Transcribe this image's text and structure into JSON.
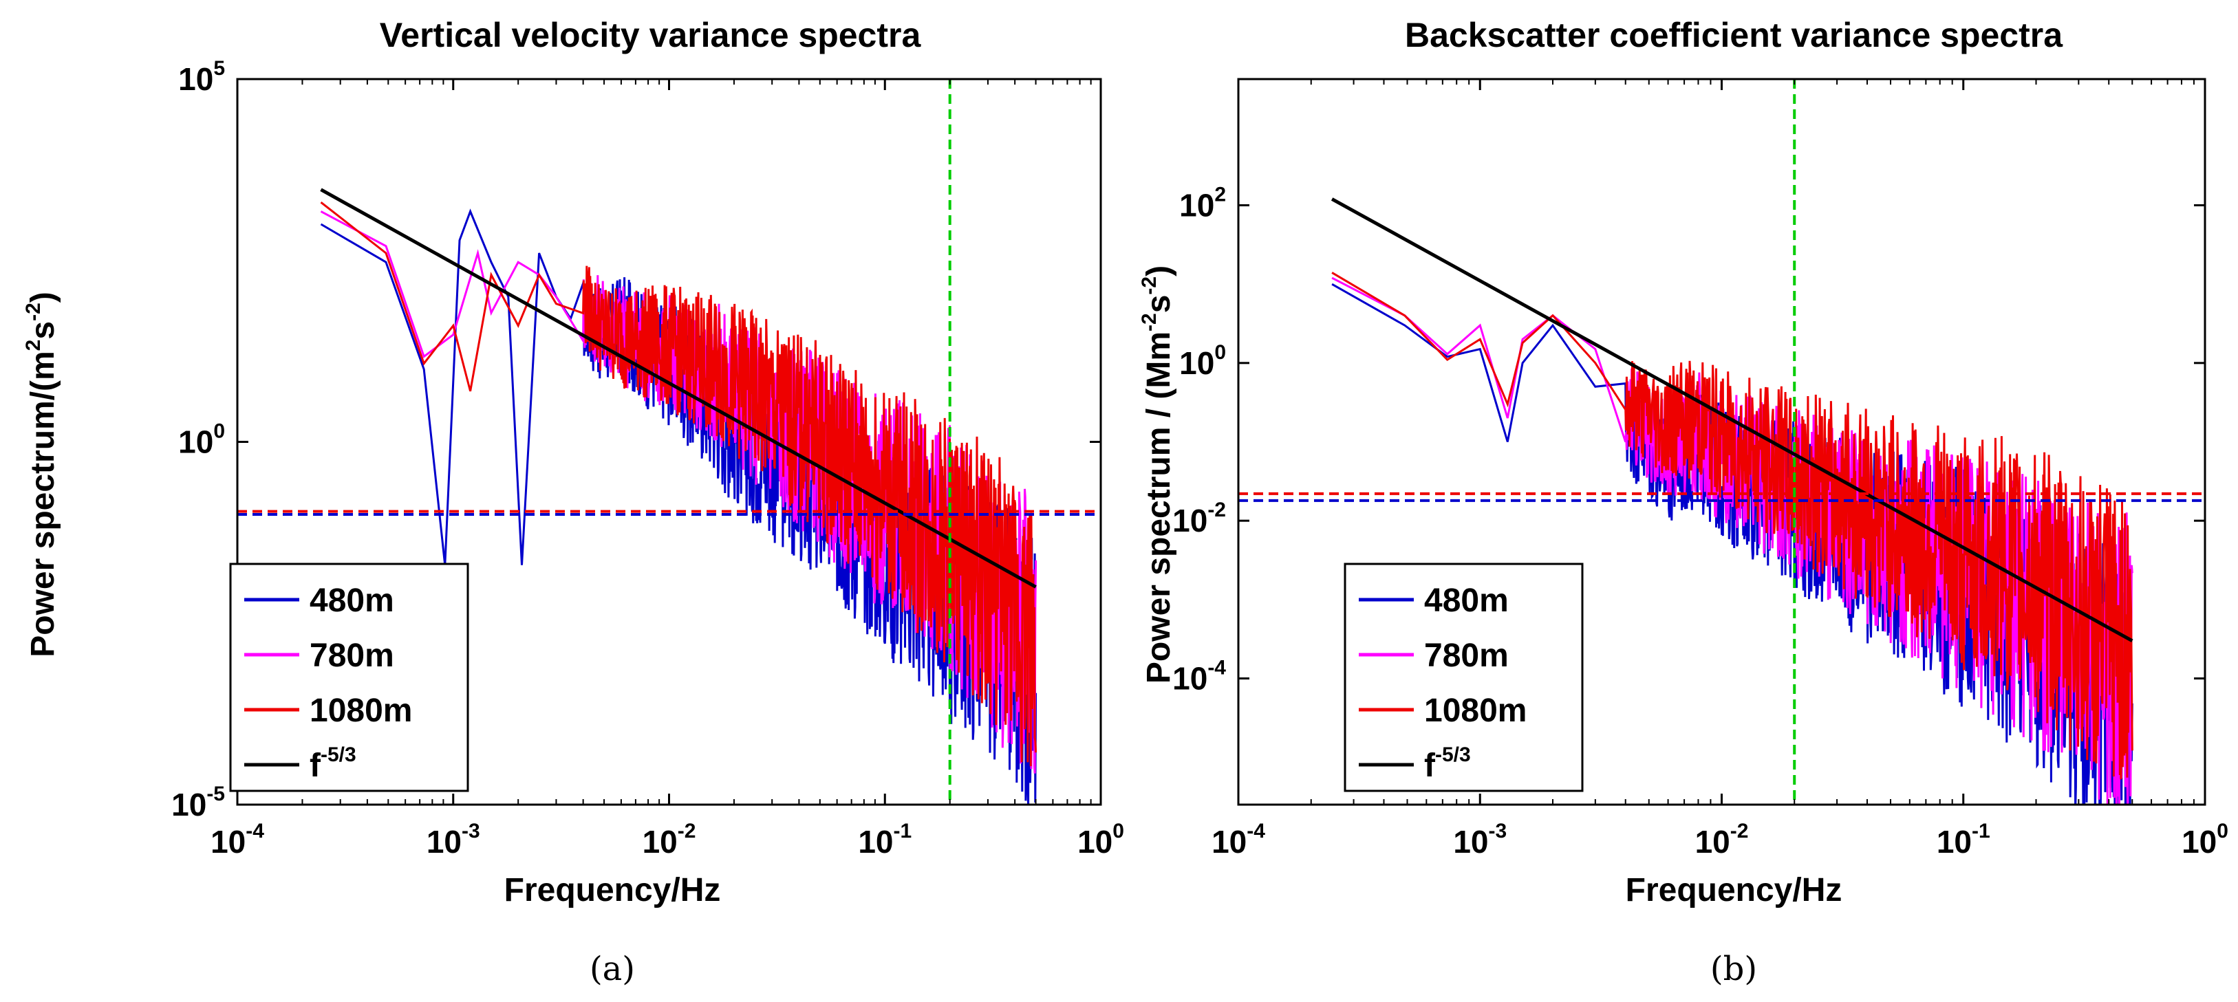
{
  "chart_data": [
    {
      "type": "line",
      "panel": "a",
      "caption": "(a)",
      "title": "Vertical velocity variance spectra",
      "xlabel": "Frequency/Hz",
      "ylabel": "Power spectrum/(m²s⁻²)",
      "ylabel_main": "Power spectrum/(m",
      "ylabel_sup1": "2",
      "ylabel_mid": "s",
      "ylabel_sup2": "-2",
      "ylabel_tail": ")",
      "xscale": "log",
      "yscale": "log",
      "xlim_exp": [
        -4,
        0
      ],
      "ylim_exp": [
        -5,
        5
      ],
      "x_ticks": [
        {
          "base": "10",
          "exp": "-4"
        },
        {
          "base": "10",
          "exp": "-3"
        },
        {
          "base": "10",
          "exp": "-2"
        },
        {
          "base": "10",
          "exp": "-1"
        },
        {
          "base": "10",
          "exp": "0"
        }
      ],
      "y_ticks": [
        {
          "base": "10",
          "exp": "-5"
        },
        {
          "base": "10",
          "exp": "0"
        },
        {
          "base": "10",
          "exp": "5"
        }
      ],
      "legend_position": "bottom-left",
      "series": [
        {
          "name": "480m",
          "color": "#0000cc",
          "x": [
            0.000244,
            0.000488,
            0.000732,
            0.000916,
            0.00107,
            0.0012,
            0.0015,
            0.0018,
            0.00208,
            0.0025,
            0.003,
            0.0035,
            0.004,
            0.005,
            0.006,
            0.008,
            0.01,
            0.015,
            0.02,
            0.03,
            0.05,
            0.08,
            0.1,
            0.15,
            0.2,
            0.3,
            0.5
          ],
          "y": [
            1000,
            300,
            10,
            0.02,
            600,
            1500,
            300,
            100,
            0.02,
            400,
            100,
            50,
            60,
            30,
            50,
            20,
            15,
            5,
            2,
            0.8,
            0.3,
            0.1,
            0.05,
            0.02,
            0.01,
            0.005,
            0.001
          ],
          "y_band_low": [
            null
          ],
          "note": "noisy spectrum; representative envelope values"
        },
        {
          "name": "780m",
          "color": "#ff00ff",
          "x": [
            0.000244,
            0.000488,
            0.000732,
            0.001,
            0.0013,
            0.0015,
            0.002,
            0.0025,
            0.003,
            0.004,
            0.005,
            0.007,
            0.01,
            0.02,
            0.03,
            0.05,
            0.1,
            0.2,
            0.3,
            0.5
          ],
          "y": [
            1500,
            500,
            15,
            30,
            400,
            60,
            300,
            200,
            100,
            80,
            50,
            30,
            20,
            8,
            3,
            1,
            0.2,
            0.05,
            0.01,
            0.003
          ]
        },
        {
          "name": "1080m",
          "color": "#ee0000",
          "x": [
            0.000244,
            0.000488,
            0.000732,
            0.001,
            0.0012,
            0.0015,
            0.002,
            0.0025,
            0.003,
            0.004,
            0.005,
            0.007,
            0.01,
            0.02,
            0.03,
            0.05,
            0.1,
            0.2,
            0.3,
            0.5
          ],
          "y": [
            2000,
            400,
            12,
            40,
            5,
            200,
            40,
            200,
            80,
            100,
            40,
            30,
            25,
            10,
            4,
            1.5,
            0.3,
            0.06,
            0.02,
            0.003
          ]
        },
        {
          "name": "f^-5/3",
          "legend_base": "f",
          "legend_sup": "-5/3",
          "color": "#000000",
          "x": [
            0.000244,
            0.5
          ],
          "y": [
            3000,
            0.01
          ]
        }
      ],
      "hlines": [
        {
          "y": 0.11,
          "color": "#ee0000",
          "style": "dashed"
        },
        {
          "y": 0.1,
          "color": "#0000cc",
          "style": "dashed"
        }
      ],
      "vlines": [
        {
          "x": 0.2,
          "color": "#00cc00",
          "style": "dashed"
        }
      ]
    },
    {
      "type": "line",
      "panel": "b",
      "caption": "(b)",
      "title": "Backscatter coefficient variance spectra",
      "xlabel": "Frequency/Hz",
      "ylabel": "Power spectrum / (Mm⁻²s⁻²)",
      "ylabel_main": "Power spectrum / (Mm",
      "ylabel_sup1": "-2",
      "ylabel_mid": "s",
      "ylabel_sup2": "-2",
      "ylabel_tail": ")",
      "xscale": "log",
      "yscale": "log",
      "xlim_exp": [
        -4,
        0
      ],
      "ylim_exp": [
        -5.6,
        3.6
      ],
      "x_ticks": [
        {
          "base": "10",
          "exp": "-4"
        },
        {
          "base": "10",
          "exp": "-3"
        },
        {
          "base": "10",
          "exp": "-2"
        },
        {
          "base": "10",
          "exp": "-1"
        },
        {
          "base": "10",
          "exp": "0"
        }
      ],
      "y_ticks": [
        {
          "base": "10",
          "exp": "-4"
        },
        {
          "base": "10",
          "exp": "-2"
        },
        {
          "base": "10",
          "exp": "0"
        },
        {
          "base": "10",
          "exp": "2"
        }
      ],
      "legend_position": "bottom-left",
      "series": [
        {
          "name": "480m",
          "color": "#0000cc",
          "x": [
            0.000244,
            0.000488,
            0.000732,
            0.001,
            0.0013,
            0.0015,
            0.002,
            0.003,
            0.004,
            0.006,
            0.008,
            0.01,
            0.02,
            0.03,
            0.05,
            0.1,
            0.2,
            0.3,
            0.5
          ],
          "y": [
            10,
            3,
            1.2,
            1.5,
            0.1,
            1,
            3,
            0.5,
            0.2,
            0.05,
            0.1,
            0.05,
            0.02,
            0.01,
            0.005,
            0.002,
            0.0005,
            0.0002,
            0.0001
          ]
        },
        {
          "name": "780m",
          "color": "#ff00ff",
          "x": [
            0.000244,
            0.000488,
            0.000732,
            0.001,
            0.0013,
            0.0015,
            0.002,
            0.003,
            0.004,
            0.006,
            0.008,
            0.01,
            0.02,
            0.03,
            0.05,
            0.1,
            0.2,
            0.3,
            0.5
          ],
          "y": [
            12,
            4,
            1.3,
            3,
            0.2,
            2,
            4,
            1.5,
            0.3,
            0.1,
            0.15,
            0.08,
            0.03,
            0.015,
            0.008,
            0.003,
            0.001,
            0.0004,
            0.0002
          ]
        },
        {
          "name": "1080m",
          "color": "#ee0000",
          "x": [
            0.000244,
            0.000488,
            0.000732,
            0.001,
            0.0013,
            0.0015,
            0.002,
            0.003,
            0.004,
            0.006,
            0.008,
            0.01,
            0.02,
            0.03,
            0.05,
            0.1,
            0.2,
            0.3,
            0.5
          ],
          "y": [
            14,
            4,
            1.1,
            2,
            0.3,
            1.8,
            4,
            1,
            0.4,
            0.2,
            0.25,
            0.15,
            0.05,
            0.03,
            0.015,
            0.006,
            0.003,
            0.001,
            0.0005
          ]
        },
        {
          "name": "f^-5/3",
          "legend_base": "f",
          "legend_sup": "-5/3",
          "color": "#000000",
          "x": [
            0.000244,
            0.5
          ],
          "y": [
            120,
            0.0003
          ]
        }
      ],
      "hlines": [
        {
          "y": 0.022,
          "color": "#ee0000",
          "style": "dashed"
        },
        {
          "y": 0.018,
          "color": "#0000cc",
          "style": "dashed"
        }
      ],
      "vlines": [
        {
          "x": 0.02,
          "color": "#00cc00",
          "style": "dashed"
        }
      ]
    }
  ]
}
